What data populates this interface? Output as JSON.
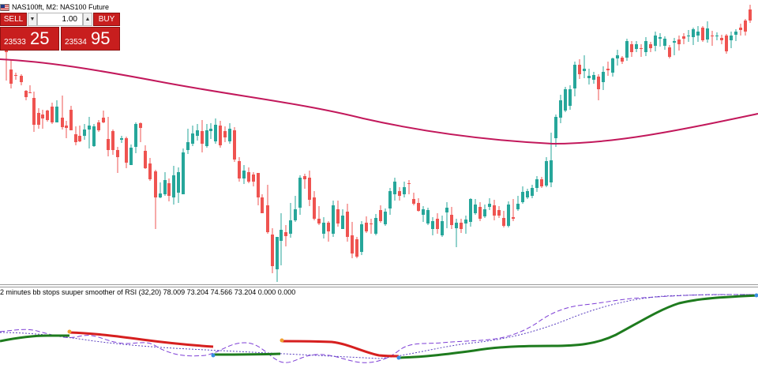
{
  "header": {
    "symbol_line": "NAS100ft, M2:  NAS100 Future"
  },
  "trade_panel": {
    "sell_label": "SELL",
    "buy_label": "BUY",
    "volume": "1.00",
    "sell_price_small": "23533",
    "sell_price_big": "25",
    "buy_price_small": "23534",
    "buy_price_big": "95",
    "accent": "#c81e1e"
  },
  "indicator": {
    "label": "2 minutes bb stops suuper smoother of RSI (32,20) 78.009 73.204 74.566 73.204 0.000 0.000"
  },
  "chart_data": {
    "type": "candlestick",
    "bull_color": "#26a69a",
    "bear_color": "#ef5350",
    "ma_color": "#c2185b",
    "candles": [
      [
        8,
        64,
        66,
        57,
        102
      ],
      [
        14,
        88,
        106,
        75,
        112
      ],
      [
        20,
        95,
        95,
        92,
        101
      ],
      [
        27,
        96,
        104,
        94,
        108
      ],
      [
        33,
        115,
        123,
        114,
        127
      ],
      [
        38,
        117,
        117,
        108,
        117
      ],
      [
        43,
        124,
        158,
        116,
        167
      ],
      [
        49,
        143,
        158,
        137,
        163
      ],
      [
        54,
        145,
        150,
        139,
        163
      ],
      [
        60,
        140,
        152,
        139,
        154
      ],
      [
        66,
        135,
        155,
        130,
        157
      ],
      [
        72,
        155,
        135,
        127,
        155
      ],
      [
        79,
        149,
        161,
        121,
        164
      ],
      [
        84,
        159,
        162,
        153,
        175
      ],
      [
        90,
        139,
        165,
        134,
        165
      ],
      [
        96,
        170,
        180,
        160,
        184
      ],
      [
        101,
        172,
        179,
        159,
        180
      ],
      [
        107,
        172,
        164,
        157,
        177
      ],
      [
        113,
        164,
        159,
        148,
        188
      ],
      [
        119,
        185,
        160,
        157,
        186
      ],
      [
        125,
        155,
        165,
        152,
        167
      ],
      [
        131,
        149,
        155,
        140,
        156
      ],
      [
        137,
        176,
        190,
        148,
        198
      ],
      [
        143,
        166,
        190,
        164,
        196
      ],
      [
        149,
        190,
        199,
        186,
        219
      ],
      [
        154,
        177,
        175,
        172,
        181
      ],
      [
        160,
        175,
        206,
        173,
        213
      ],
      [
        166,
        209,
        187,
        183,
        209
      ],
      [
        172,
        186,
        157,
        155,
        194
      ],
      [
        178,
        156,
        162,
        155,
        180
      ],
      [
        184,
        191,
        213,
        184,
        214
      ],
      [
        190,
        207,
        227,
        200,
        229
      ],
      [
        197,
        217,
        250,
        215,
        290
      ],
      [
        203,
        250,
        245,
        231,
        251
      ],
      [
        209,
        246,
        228,
        218,
        248
      ],
      [
        214,
        232,
        248,
        226,
        255
      ],
      [
        220,
        250,
        222,
        210,
        259
      ],
      [
        226,
        244,
        218,
        212,
        257
      ],
      [
        232,
        246,
        193,
        188,
        246
      ],
      [
        238,
        190,
        180,
        163,
        195
      ],
      [
        244,
        182,
        169,
        159,
        185
      ],
      [
        250,
        172,
        165,
        157,
        178
      ],
      [
        256,
        166,
        182,
        152,
        193
      ],
      [
        262,
        185,
        165,
        157,
        187
      ],
      [
        267,
        166,
        163,
        156,
        176
      ],
      [
        273,
        179,
        158,
        150,
        182
      ],
      [
        279,
        159,
        184,
        153,
        187
      ],
      [
        285,
        166,
        174,
        160,
        180
      ],
      [
        291,
        179,
        163,
        156,
        182
      ],
      [
        297,
        165,
        202,
        161,
        205
      ],
      [
        303,
        204,
        226,
        199,
        230
      ],
      [
        309,
        226,
        216,
        209,
        233
      ],
      [
        315,
        218,
        230,
        212,
        232
      ],
      [
        321,
        221,
        230,
        218,
        236
      ],
      [
        327,
        219,
        250,
        219,
        260
      ],
      [
        332,
        250,
        270,
        246,
        270
      ],
      [
        339,
        260,
        294,
        234,
        296
      ],
      [
        345,
        297,
        337,
        289,
        346
      ],
      [
        351,
        341,
        300,
        300,
        357
      ],
      [
        356,
        305,
        291,
        270,
        336
      ],
      [
        362,
        294,
        299,
        285,
        312
      ],
      [
        368,
        296,
        279,
        257,
        301
      ],
      [
        374,
        279,
        265,
        248,
        281
      ],
      [
        380,
        263,
        225,
        222,
        272
      ],
      [
        386,
        223,
        227,
        220,
        239
      ],
      [
        392,
        225,
        253,
        216,
        261
      ],
      [
        398,
        250,
        277,
        242,
        279
      ],
      [
        404,
        277,
        283,
        261,
        285
      ],
      [
        410,
        296,
        282,
        275,
        302
      ],
      [
        416,
        282,
        293,
        280,
        306
      ],
      [
        422,
        296,
        260,
        254,
        300
      ],
      [
        428,
        265,
        283,
        254,
        287
      ],
      [
        434,
        290,
        273,
        265,
        290
      ],
      [
        440,
        268,
        300,
        258,
        306
      ],
      [
        446,
        298,
        321,
        281,
        327
      ],
      [
        452,
        303,
        325,
        300,
        327
      ],
      [
        458,
        319,
        284,
        280,
        323
      ],
      [
        464,
        282,
        293,
        274,
        295
      ],
      [
        470,
        283,
        284,
        277,
        296
      ],
      [
        476,
        296,
        276,
        271,
        298
      ],
      [
        482,
        266,
        280,
        260,
        282
      ],
      [
        488,
        284,
        268,
        264,
        286
      ],
      [
        494,
        264,
        242,
        238,
        272
      ],
      [
        500,
        246,
        230,
        225,
        254
      ],
      [
        506,
        242,
        248,
        237,
        254
      ],
      [
        512,
        246,
        237,
        230,
        250
      ],
      [
        518,
        232,
        233,
        228,
        246
      ],
      [
        524,
        252,
        258,
        244,
        260
      ],
      [
        530,
        257,
        267,
        251,
        268
      ],
      [
        536,
        272,
        265,
        261,
        281
      ],
      [
        542,
        283,
        266,
        263,
        285
      ],
      [
        548,
        290,
        280,
        275,
        298
      ],
      [
        554,
        277,
        290,
        270,
        296
      ],
      [
        560,
        298,
        280,
        273,
        300
      ],
      [
        566,
        269,
        263,
        256,
        289
      ],
      [
        572,
        272,
        285,
        262,
        290
      ],
      [
        578,
        289,
        282,
        277,
        313
      ],
      [
        584,
        282,
        290,
        277,
        295
      ],
      [
        590,
        283,
        278,
        273,
        296
      ],
      [
        596,
        281,
        252,
        251,
        287
      ],
      [
        602,
        270,
        259,
        252,
        272
      ],
      [
        608,
        262,
        277,
        256,
        280
      ],
      [
        614,
        274,
        265,
        259,
        276
      ],
      [
        620,
        262,
        258,
        251,
        266
      ],
      [
        626,
        260,
        273,
        253,
        279
      ],
      [
        632,
        266,
        273,
        261,
        276
      ],
      [
        638,
        276,
        286,
        267,
        288
      ],
      [
        644,
        286,
        259,
        255,
        288
      ],
      [
        650,
        275,
        277,
        252,
        280
      ],
      [
        656,
        265,
        258,
        248,
        267
      ],
      [
        662,
        256,
        243,
        236,
        258
      ],
      [
        668,
        250,
        242,
        239,
        252
      ],
      [
        674,
        248,
        238,
        234,
        251
      ],
      [
        680,
        238,
        227,
        223,
        243
      ],
      [
        686,
        227,
        236,
        224,
        238
      ],
      [
        692,
        235,
        204,
        199,
        237
      ],
      [
        698,
        231,
        203,
        168,
        237
      ],
      [
        704,
        175,
        148,
        145,
        186
      ],
      [
        710,
        149,
        127,
        120,
        156
      ],
      [
        716,
        140,
        113,
        110,
        142
      ],
      [
        722,
        134,
        113,
        108,
        139
      ],
      [
        728,
        112,
        82,
        78,
        122
      ],
      [
        734,
        82,
        94,
        75,
        100
      ],
      [
        740,
        90,
        87,
        70,
        99
      ],
      [
        746,
        99,
        96,
        87,
        107
      ],
      [
        752,
        101,
        95,
        91,
        106
      ],
      [
        758,
        97,
        113,
        94,
        127
      ],
      [
        764,
        104,
        91,
        84,
        114
      ],
      [
        770,
        87,
        89,
        78,
        96
      ],
      [
        776,
        92,
        74,
        73,
        97
      ],
      [
        782,
        74,
        70,
        63,
        83
      ],
      [
        788,
        73,
        78,
        71,
        81
      ],
      [
        794,
        73,
        52,
        49,
        77
      ],
      [
        800,
        56,
        66,
        52,
        72
      ],
      [
        806,
        62,
        56,
        52,
        66
      ],
      [
        812,
        61,
        62,
        56,
        72
      ],
      [
        818,
        66,
        52,
        47,
        71
      ],
      [
        824,
        56,
        61,
        53,
        66
      ],
      [
        830,
        58,
        45,
        40,
        65
      ],
      [
        836,
        49,
        47,
        42,
        59
      ],
      [
        842,
        58,
        49,
        46,
        63
      ],
      [
        848,
        60,
        72,
        57,
        74
      ],
      [
        854,
        54,
        52,
        48,
        70
      ],
      [
        860,
        50,
        56,
        45,
        64
      ],
      [
        866,
        46,
        49,
        42,
        56
      ],
      [
        872,
        46,
        45,
        38,
        53
      ],
      [
        878,
        47,
        37,
        35,
        57
      ],
      [
        884,
        45,
        40,
        33,
        53
      ],
      [
        890,
        35,
        51,
        33,
        53
      ],
      [
        896,
        50,
        36,
        27,
        54
      ],
      [
        902,
        45,
        46,
        39,
        58
      ],
      [
        908,
        46,
        45,
        41,
        51
      ],
      [
        914,
        48,
        51,
        44,
        56
      ],
      [
        920,
        45,
        65,
        43,
        68
      ],
      [
        926,
        51,
        45,
        40,
        61
      ],
      [
        932,
        44,
        40,
        37,
        52
      ],
      [
        938,
        35,
        38,
        30,
        45
      ],
      [
        944,
        26,
        40,
        24,
        45
      ],
      [
        950,
        12,
        26,
        6,
        29
      ]
    ]
  }
}
